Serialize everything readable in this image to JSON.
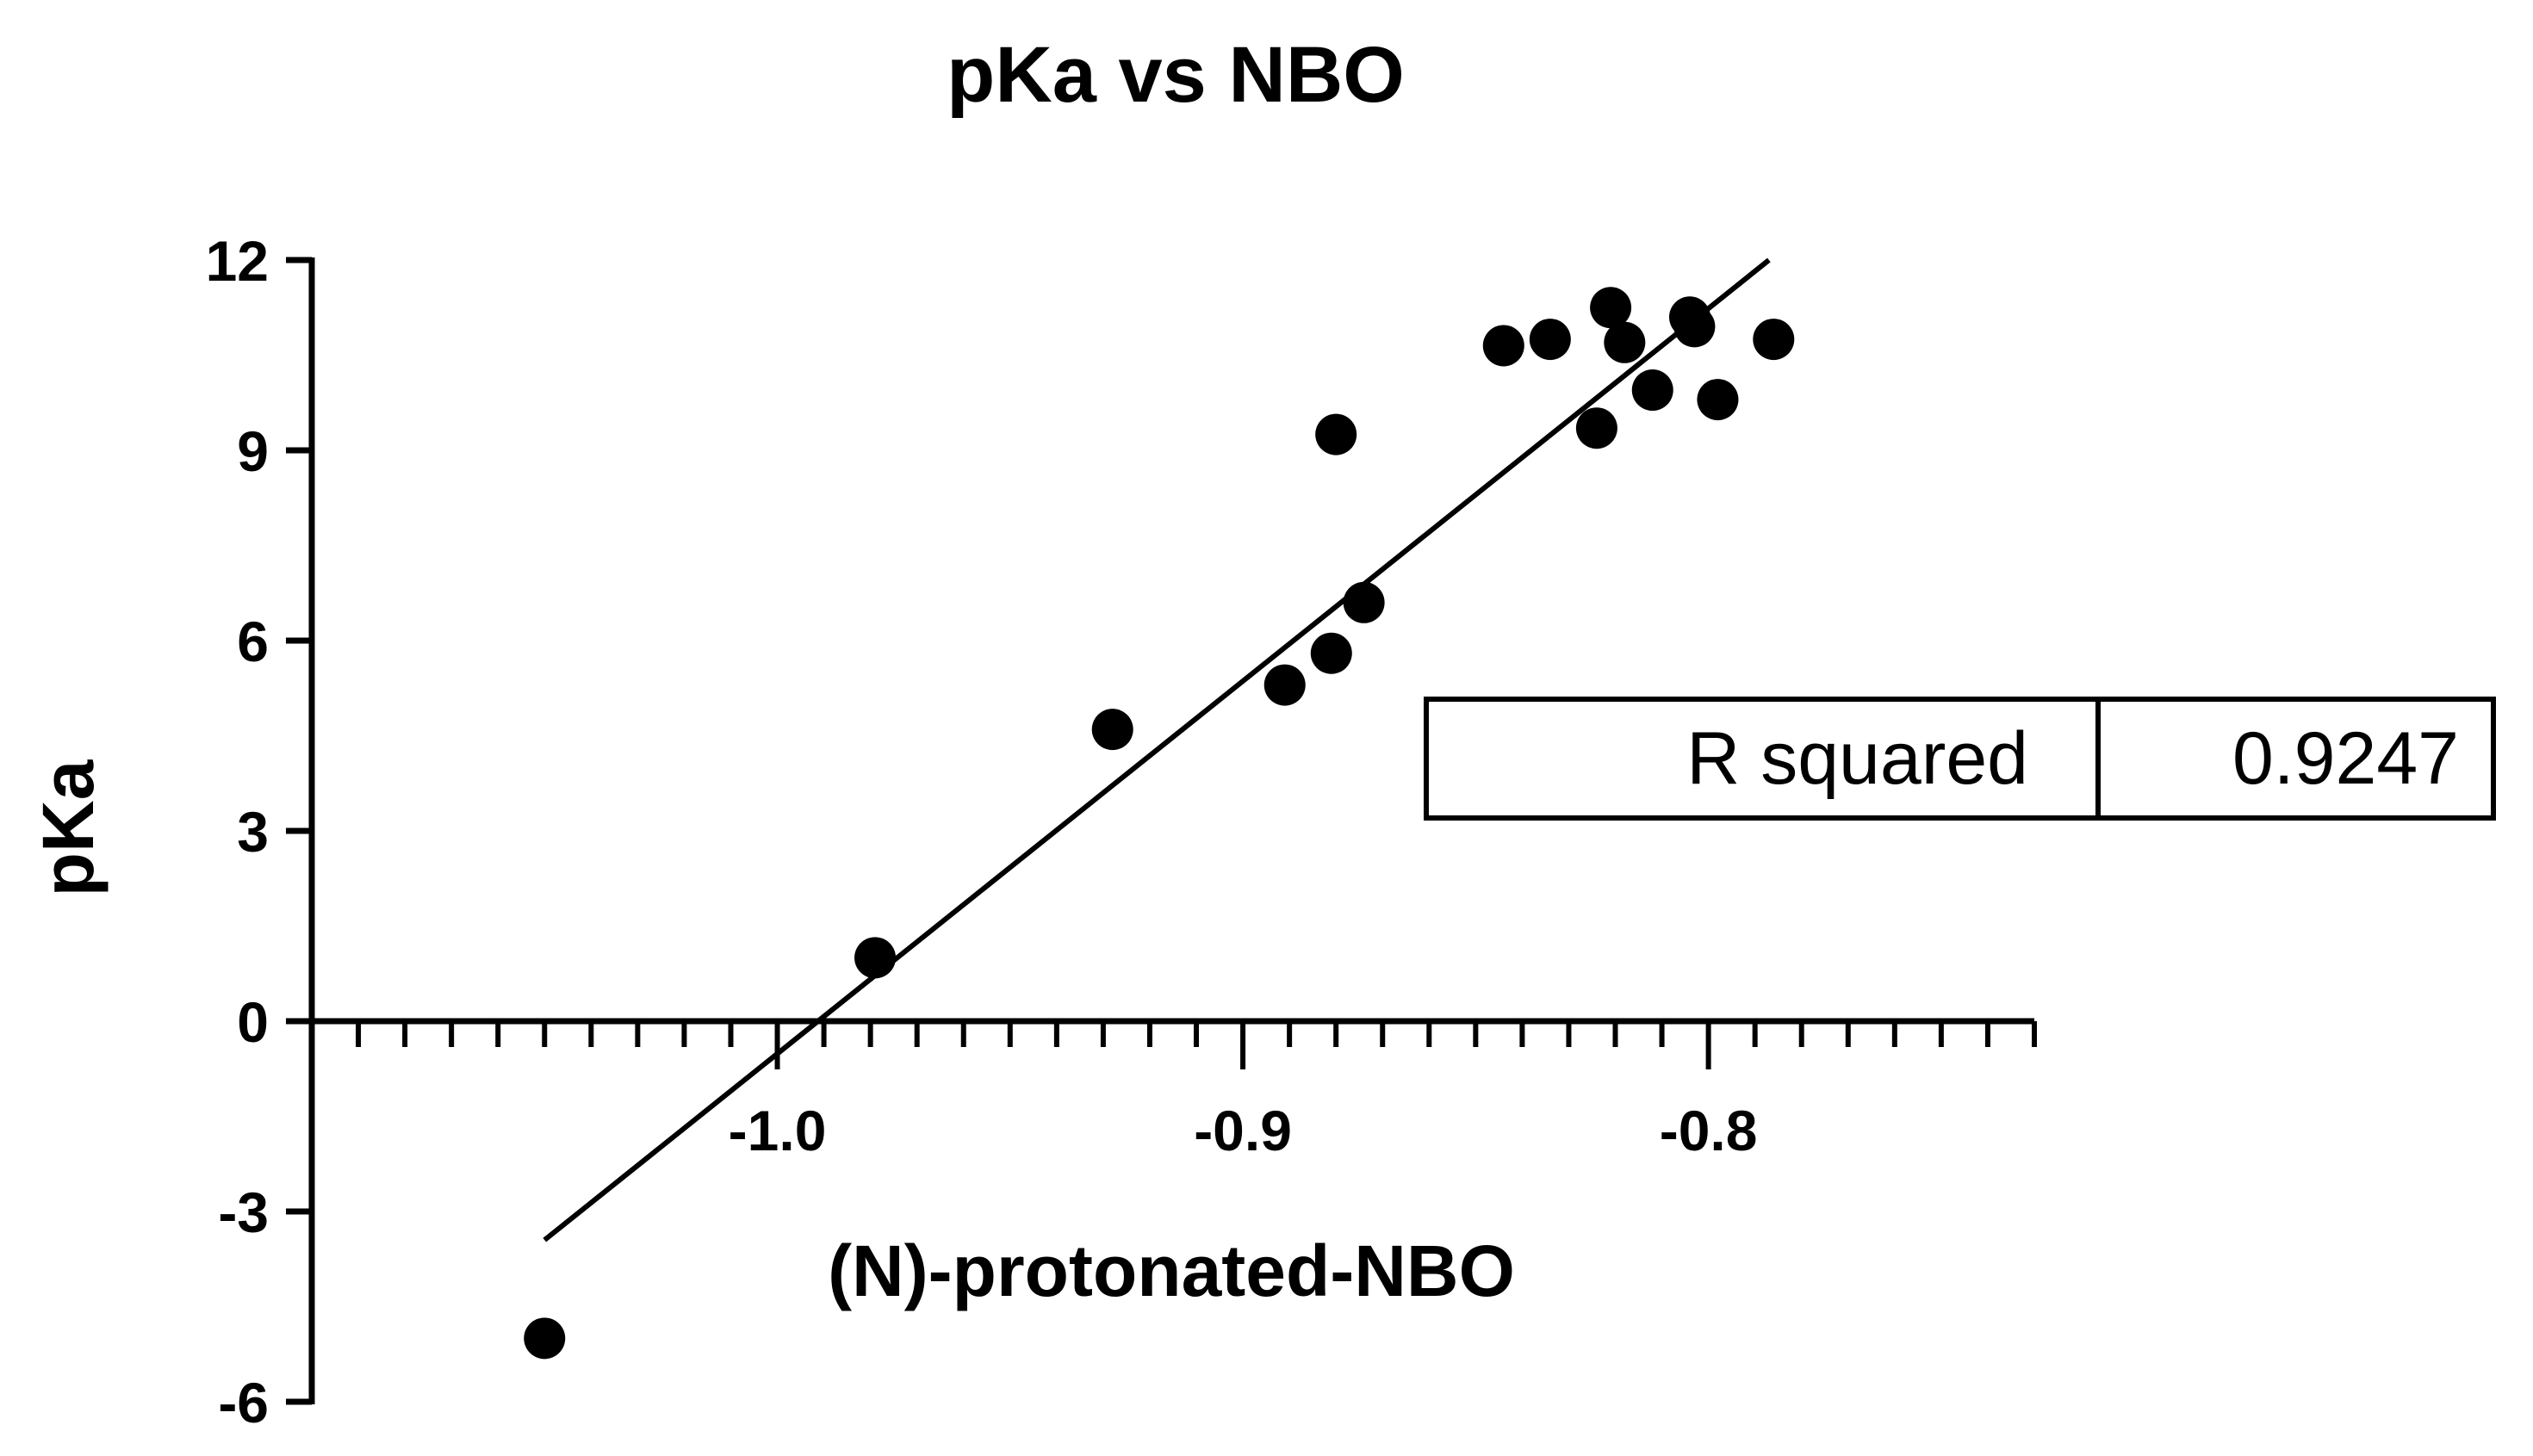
{
  "chart_data": {
    "type": "scatter",
    "title": "pKa vs NBO",
    "xlabel": "(N)-protonated-NBO",
    "ylabel": "pKa",
    "xlim": [
      -1.1,
      -0.73
    ],
    "ylim": [
      -6,
      12
    ],
    "x_ticks": [
      {
        "value": -1.0,
        "label": "-1.0"
      },
      {
        "value": -0.9,
        "label": "-0.9"
      },
      {
        "value": -0.8,
        "label": "-0.8"
      }
    ],
    "x_minor_tick_step": 0.01,
    "y_ticks": [
      {
        "value": 12,
        "label": "12"
      },
      {
        "value": 9,
        "label": "9"
      },
      {
        "value": 6,
        "label": "6"
      },
      {
        "value": 3,
        "label": "3"
      },
      {
        "value": 0,
        "label": "0"
      },
      {
        "value": -3,
        "label": "-3"
      },
      {
        "value": -6,
        "label": "-6"
      }
    ],
    "x_axis_crosses_at_y": 0,
    "grid": false,
    "points": [
      {
        "x": -1.05,
        "y": -5.0
      },
      {
        "x": -0.979,
        "y": 1.0
      },
      {
        "x": -0.928,
        "y": 4.6
      },
      {
        "x": -0.891,
        "y": 5.3
      },
      {
        "x": -0.881,
        "y": 5.8
      },
      {
        "x": -0.874,
        "y": 6.6
      },
      {
        "x": -0.88,
        "y": 9.25
      },
      {
        "x": -0.844,
        "y": 10.65
      },
      {
        "x": -0.834,
        "y": 10.75
      },
      {
        "x": -0.824,
        "y": 9.35
      },
      {
        "x": -0.821,
        "y": 11.25
      },
      {
        "x": -0.818,
        "y": 10.7
      },
      {
        "x": -0.812,
        "y": 9.95
      },
      {
        "x": -0.804,
        "y": 11.1
      },
      {
        "x": -0.803,
        "y": 10.95
      },
      {
        "x": -0.798,
        "y": 9.8
      },
      {
        "x": -0.786,
        "y": 10.75
      }
    ],
    "fit_line": {
      "x_start": -1.05,
      "y_start": -3.45,
      "x_end": -0.787,
      "y_end": 12.0
    },
    "stats": {
      "label": "R squared",
      "value": "0.9247"
    }
  }
}
